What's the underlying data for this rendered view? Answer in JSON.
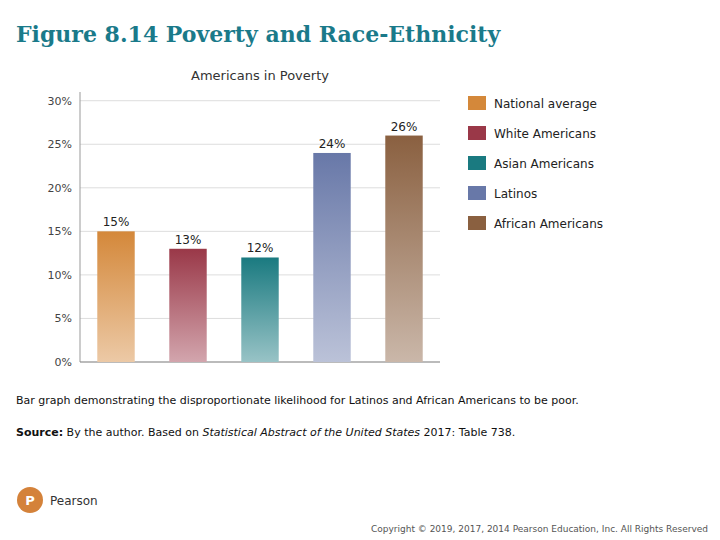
{
  "chart_data": {
    "type": "bar",
    "title": "Figure 8.14 Poverty and Race-Ethnicity",
    "subtitle": "Americans in Poverty",
    "categories": [
      "National average",
      "White Americans",
      "Asian Americans",
      "Latinos",
      "African Americans"
    ],
    "values": [
      0.15,
      0.13,
      0.12,
      0.24,
      0.26
    ],
    "value_labels": [
      "15%",
      "13%",
      "12%",
      "24%",
      "26%"
    ],
    "colors": [
      "#D4883A",
      "#9A3848",
      "#1A7A80",
      "#6878A8",
      "#8A6040"
    ],
    "ylim": [
      0,
      0.31
    ],
    "yticks": [
      {
        "value": 0.0,
        "label": "0%"
      },
      {
        "value": 0.05,
        "label": "5%"
      },
      {
        "value": 0.1,
        "label": "10%"
      },
      {
        "value": 0.15,
        "label": "15%"
      },
      {
        "value": 0.2,
        "label": "20%"
      },
      {
        "value": 0.25,
        "label": "25%"
      },
      {
        "value": 0.3,
        "label": "30%"
      }
    ],
    "grid": true,
    "legend": "right",
    "data_labels": true,
    "tick_labels": "y",
    "annotations": [
      "Bar graph demonstrating the disproportionate likelihood for Latinos and African Americans to be poor.",
      "Source:",
      " By the author. Based on ",
      "Statistical Abstract of the United States",
      " 2017: Table 738.",
      "P",
      "Pearson",
      "Copyright © 2019, 2017, 2014 Pearson Education, Inc. All Rights Reserved"
    ]
  }
}
